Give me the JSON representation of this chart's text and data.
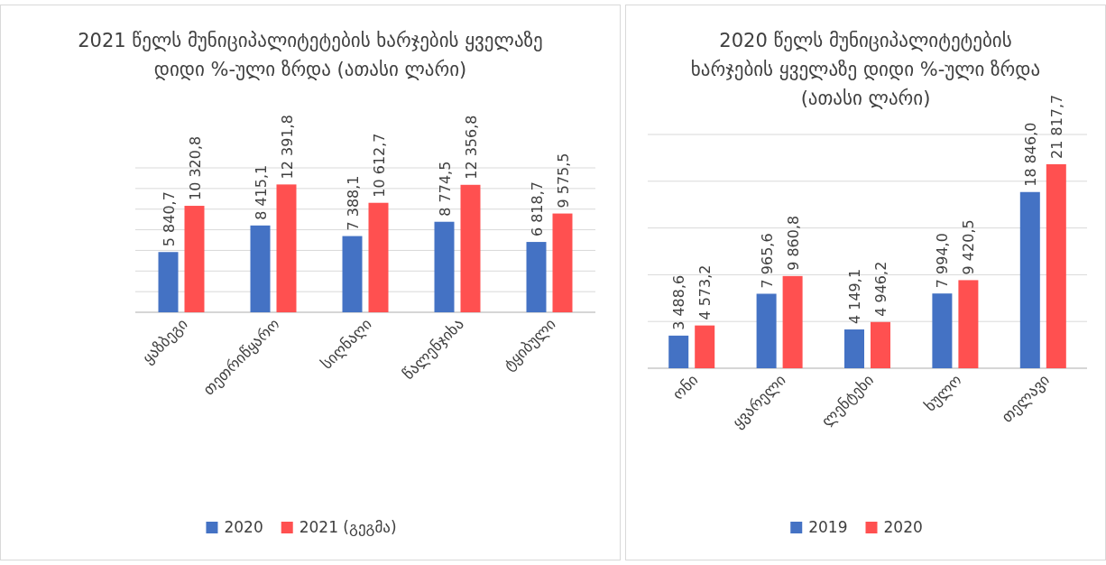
{
  "chart_data": [
    {
      "type": "bar",
      "title": "2021 წელს მუნიციპალიტეტების ხარჯების ყველაზე დიდი %-ული ზრდა  (ათასი ლარი)",
      "categories": [
        "ყაზბეგი",
        "თეთრიწყარო",
        "სიღნაღი",
        "წალენჯიხა",
        "ტყიბული"
      ],
      "series": [
        {
          "name": "2020",
          "color": "#4472c4",
          "values": [
            5840.7,
            8415.1,
            7388.1,
            8774.5,
            6818.7
          ],
          "value_labels": [
            "5 840,7",
            "8 415,1",
            "7 388,1",
            "8 774,5",
            "6 818,7"
          ]
        },
        {
          "name": "2021 (გეგმა)",
          "color": "#ff5050",
          "values": [
            10320.8,
            12391.8,
            10612.7,
            12356.8,
            9575.5
          ],
          "value_labels": [
            "10 320,8",
            "12 391,8",
            "10 612,7",
            "12 356,8",
            "9 575,5"
          ]
        }
      ],
      "ylim": [
        0,
        14000
      ],
      "yticks": [
        {
          "value": 0,
          "label": null
        },
        {
          "value": 2000,
          "label": null
        },
        {
          "value": 4000,
          "label": null
        },
        {
          "value": 6000,
          "label": null
        },
        {
          "value": 8000,
          "label": null
        },
        {
          "value": 10000,
          "label": null
        },
        {
          "value": 12000,
          "label": null
        },
        {
          "value": 14000,
          "label": null
        }
      ],
      "grid": "y",
      "legend": "bottom",
      "tick_labels": "x"
    },
    {
      "type": "bar",
      "title": "2020 წელს მუნიციპალიტეტების ხარჯების ყველაზე დიდი %-ული ზრდა (ათასი ლარი)",
      "categories": [
        "ონი",
        "ყვარელი",
        "ლენტეხი",
        "ხულო",
        "თელავი"
      ],
      "series": [
        {
          "name": "2019",
          "color": "#4472c4",
          "values": [
            3488.6,
            7965.6,
            4149.1,
            7994.0,
            18846.0
          ],
          "value_labels": [
            "3 488,6",
            "7 965,6",
            "4 149,1",
            "7 994,0",
            "18 846,0"
          ]
        },
        {
          "name": "2020",
          "color": "#ff5050",
          "values": [
            4573.2,
            9860.8,
            4946.2,
            9420.5,
            21817.7
          ],
          "value_labels": [
            "4 573,2",
            "9 860,8",
            "4 946,2",
            "9 420,5",
            "21 817,7"
          ]
        }
      ],
      "ylim": [
        0,
        25000
      ],
      "yticks": [
        {
          "value": 0,
          "label": null
        },
        {
          "value": 5000,
          "label": null
        },
        {
          "value": 10000,
          "label": null
        },
        {
          "value": 15000,
          "label": null
        },
        {
          "value": 20000,
          "label": null
        },
        {
          "value": 25000,
          "label": null
        }
      ],
      "grid": "y",
      "legend": "bottom",
      "tick_labels": "x"
    }
  ]
}
